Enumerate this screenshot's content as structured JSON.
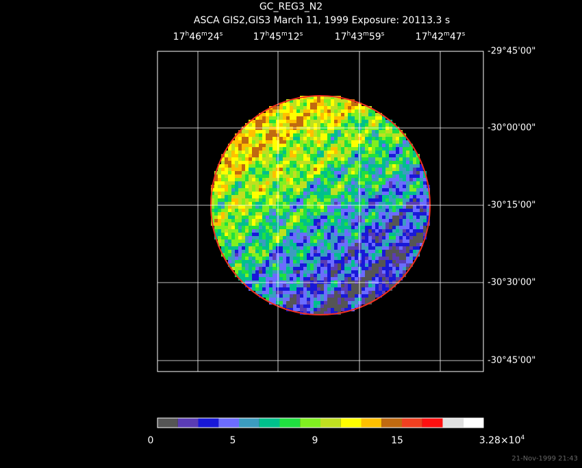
{
  "header": {
    "title": "GC_REG3_N2",
    "subtitle": "ASCA GIS2,GIS3 March 11, 1999 Exposure: 20113.3 s"
  },
  "ra_labels": [
    {
      "parts": [
        "17",
        "h",
        "46",
        "m",
        "24",
        "s"
      ]
    },
    {
      "parts": [
        "17",
        "h",
        "45",
        "m",
        "12",
        "s"
      ]
    },
    {
      "parts": [
        "17",
        "h",
        "43",
        "m",
        "59",
        "s"
      ]
    },
    {
      "parts": [
        "17",
        "h",
        "42",
        "m",
        "47",
        "s"
      ]
    }
  ],
  "dec_labels": [
    "-29°45'00\"",
    "-30°00'00\"",
    "-30°15'00\"",
    "-30°30'00\"",
    "-30°45'00\""
  ],
  "colorbar": {
    "colors": [
      "#555555",
      "#5a3cb4",
      "#1818d8",
      "#6c6cff",
      "#3c9cc0",
      "#00c08c",
      "#20e040",
      "#80f020",
      "#c0e020",
      "#ffff00",
      "#ffc000",
      "#c06a10",
      "#f04020",
      "#ff1010",
      "#e0e0e0",
      "#ffffff"
    ],
    "labels": [
      {
        "parts": [
          "0"
        ]
      },
      {
        "parts": [
          "5"
        ]
      },
      {
        "parts": [
          "9"
        ]
      },
      {
        "parts": [
          "15"
        ]
      },
      {
        "parts": [
          "3.28×10",
          "4"
        ]
      }
    ]
  },
  "footer": {
    "timestamp": "21-Nov-1999 21:43"
  }
}
